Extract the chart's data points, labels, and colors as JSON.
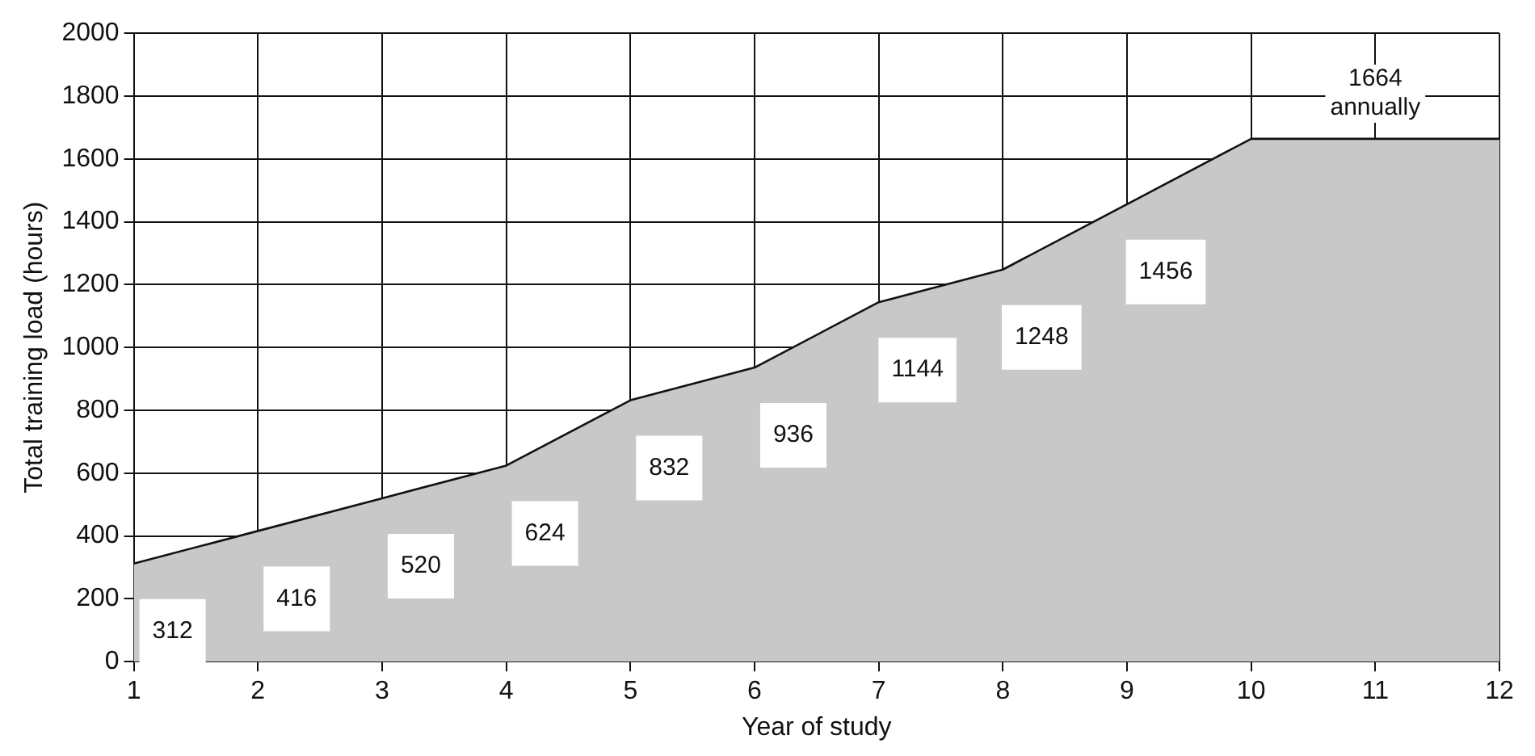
{
  "chart_data": {
    "type": "area",
    "xlabel": "Year of study",
    "ylabel": "Total training load (hours)",
    "x": [
      1,
      2,
      3,
      4,
      5,
      6,
      7,
      8,
      9,
      10,
      11,
      12
    ],
    "series": [
      {
        "color": "#c8c8c8",
        "values": [
          312,
          416,
          520,
          624,
          832,
          936,
          1144,
          1248,
          1456,
          1664,
          1664,
          1664
        ],
        "value_labels": [
          "312",
          "416",
          "520",
          "624",
          "832",
          "936",
          "1144",
          "1248",
          "1456",
          null,
          null,
          null
        ]
      }
    ],
    "annotations": [
      {
        "text": "1664 annually",
        "x": 11,
        "y": 1664
      }
    ],
    "xlim": [
      1,
      12
    ],
    "xticks": [
      1,
      2,
      3,
      4,
      5,
      6,
      7,
      8,
      9,
      10,
      11,
      12
    ],
    "ylim": [
      0,
      2000
    ],
    "yticks": [
      0,
      200,
      400,
      600,
      800,
      1000,
      1200,
      1400,
      1600,
      1800,
      2000
    ],
    "grid": true,
    "legend": false,
    "marker": "none",
    "line_style": "solid"
  }
}
